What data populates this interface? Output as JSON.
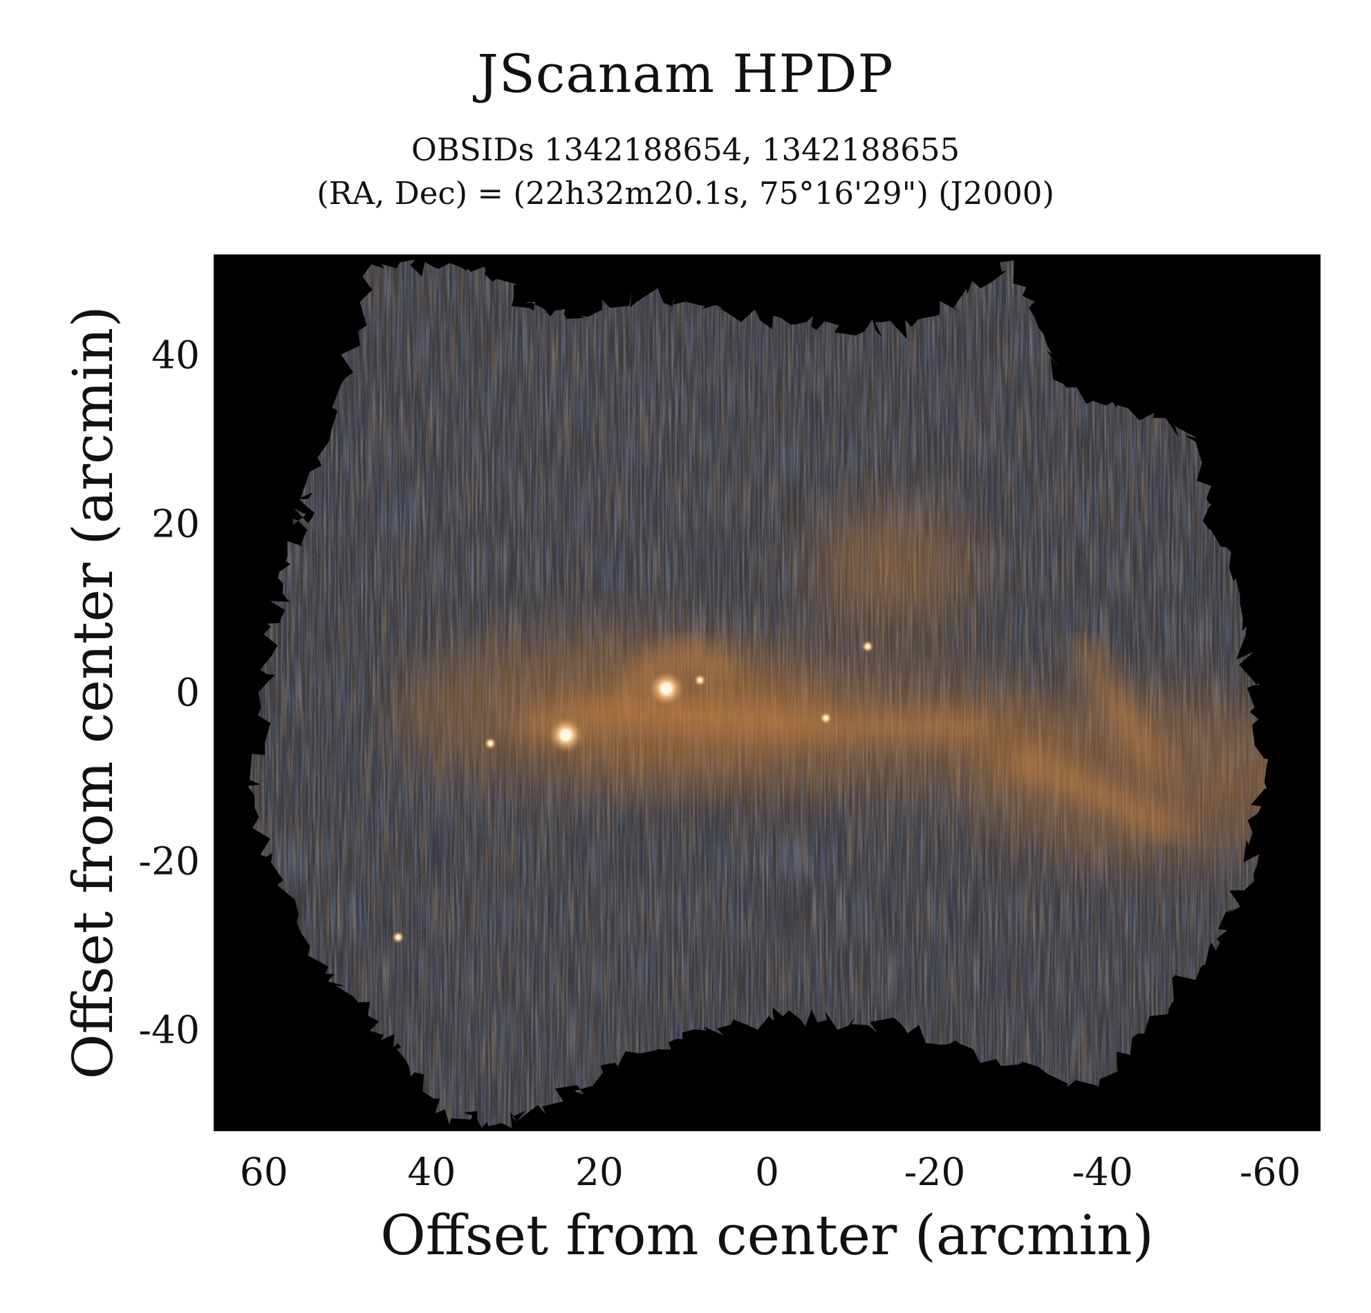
{
  "title": "JScanam HPDP",
  "subtitle_line1": "OBSIDs 1342188654, 1342188655",
  "subtitle_line2": "(RA, Dec) = (22h32m20.1s, 75°16'29\") (J2000)",
  "chart_data": {
    "type": "heatmap",
    "title": "JScanam HPDP",
    "subtitle": [
      "OBSIDs 1342188654, 1342188655",
      "(RA, Dec) = (22h32m20.1s, 75°16'29\") (J2000)"
    ],
    "xlabel": "Offset from center (arcmin)",
    "ylabel": "Offset from center (arcmin)",
    "xlim": [
      66,
      -66
    ],
    "ylim": [
      -52,
      52
    ],
    "x_ticks": [
      "60",
      "40",
      "20",
      "0",
      "-20",
      "-40",
      "-60"
    ],
    "y_ticks": [
      "40",
      "20",
      "0",
      "-20",
      "-40"
    ],
    "x_tick_values": [
      60,
      40,
      20,
      0,
      -20,
      -40,
      -60
    ],
    "y_tick_values": [
      40,
      20,
      0,
      -20,
      -40
    ],
    "grid": false,
    "colors": {
      "background": "#000000",
      "map_base": "#2a2a30",
      "emission": "#c07a35",
      "stripe_blue": "#3f63a5",
      "stripe_orange": "#a36a33"
    },
    "point_sources": [
      {
        "x": 12,
        "y": 0.5
      },
      {
        "x": 24,
        "y": -5
      },
      {
        "x": 33,
        "y": -6
      },
      {
        "x": -7,
        "y": -3
      },
      {
        "x": -12,
        "y": 5.5
      },
      {
        "x": 8,
        "y": 1.5
      },
      {
        "x": 44,
        "y": -29
      }
    ]
  }
}
